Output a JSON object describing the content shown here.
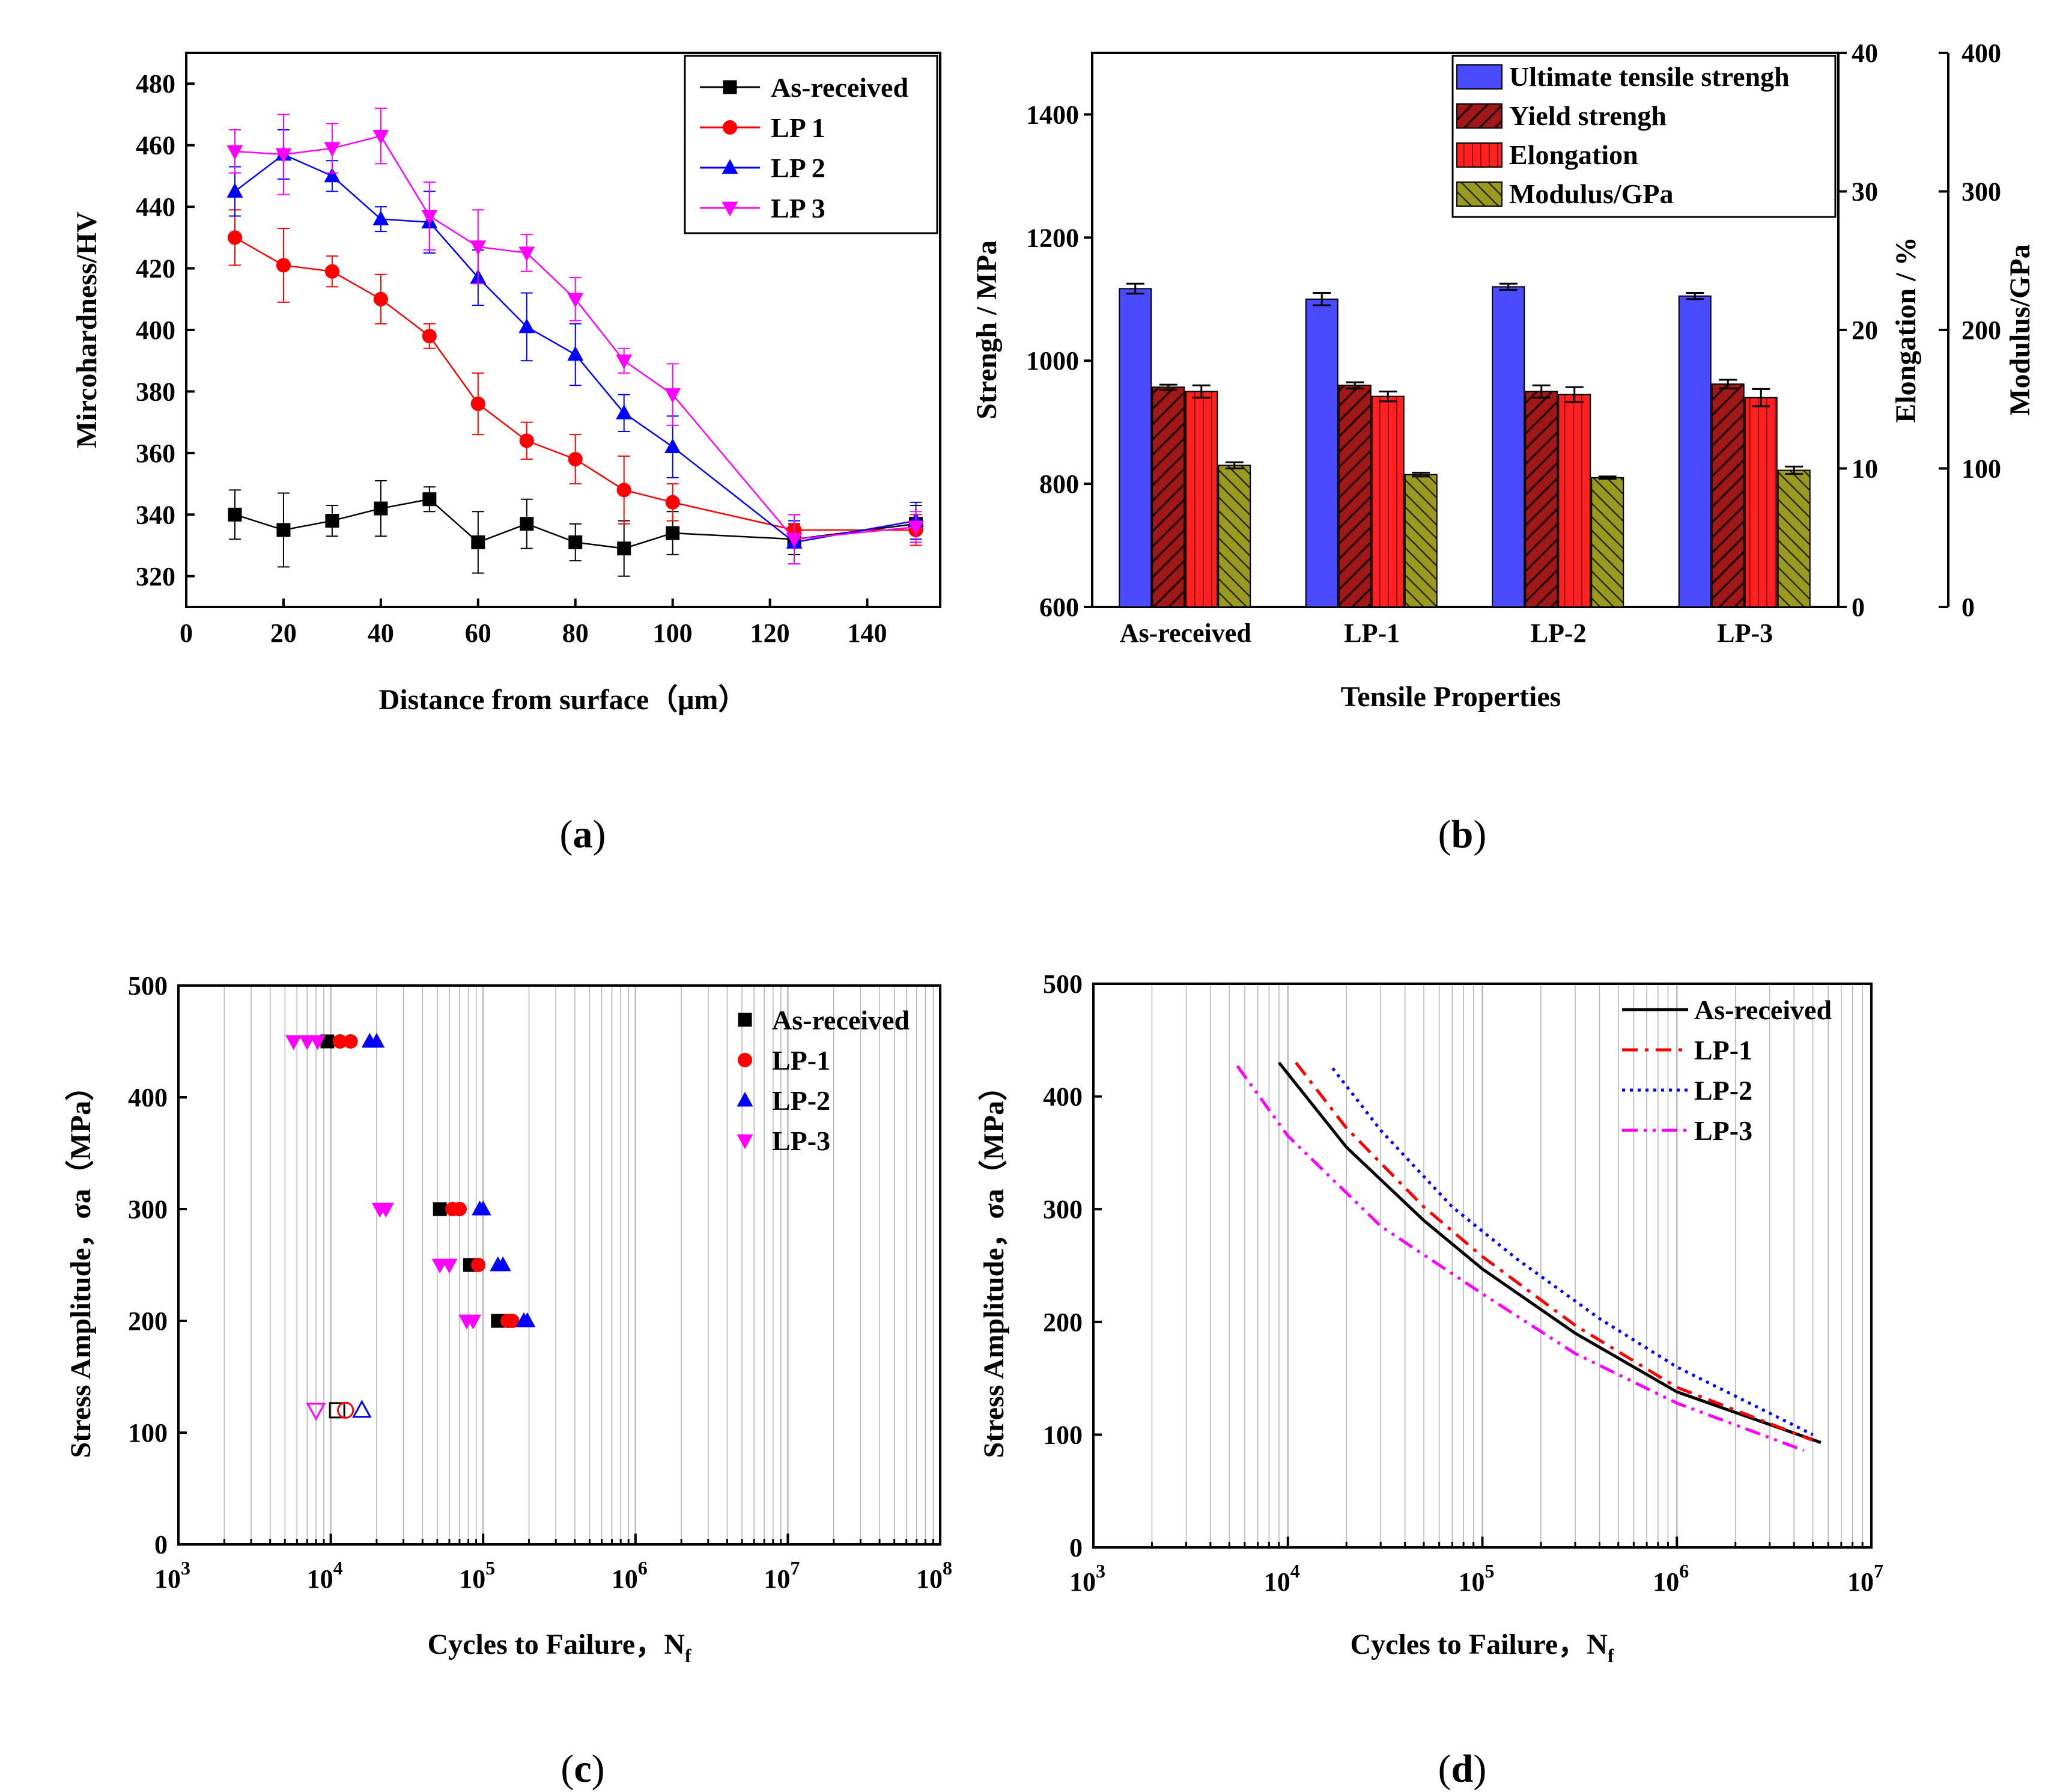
{
  "captions": {
    "a": "a",
    "b": "b",
    "c": "c",
    "d": "d"
  },
  "colors": {
    "as_received": "#000000",
    "lp1": "#ff0000",
    "lp2": "#0000ff",
    "lp3": "#ff00ff",
    "uts": "#4a4aff",
    "yield": "#a01010",
    "elong": "#ff2020",
    "modulus": "#8a8a10"
  },
  "chart_data": [
    {
      "id": "a",
      "type": "line",
      "xlabel": "Distance from surface（μm）",
      "ylabel": "Mircohardness/HV",
      "xlim": [
        0,
        155
      ],
      "ylim": [
        310,
        490
      ],
      "xticks": [
        0,
        20,
        40,
        60,
        80,
        100,
        120,
        140
      ],
      "yticks": [
        320,
        340,
        360,
        380,
        400,
        420,
        440,
        460,
        480
      ],
      "legend_position": "top-right",
      "x": [
        10,
        20,
        30,
        40,
        50,
        60,
        70,
        80,
        90,
        100,
        125,
        150
      ],
      "series": [
        {
          "name": "As-received",
          "marker": "square",
          "values": [
            340,
            335,
            338,
            342,
            345,
            331,
            337,
            331,
            329,
            334,
            332,
            337
          ],
          "errors": [
            8,
            12,
            5,
            9,
            4,
            10,
            8,
            6,
            9,
            7,
            5,
            6
          ]
        },
        {
          "name": "LP 1",
          "marker": "circle",
          "values": [
            430,
            421,
            419,
            410,
            398,
            376,
            364,
            358,
            348,
            344,
            335,
            335
          ],
          "errors": [
            9,
            12,
            5,
            8,
            4,
            10,
            6,
            8,
            11,
            6,
            5,
            5
          ]
        },
        {
          "name": "LP 2",
          "marker": "triangle-up",
          "values": [
            445,
            457,
            450,
            436,
            435,
            417,
            401,
            392,
            373,
            362,
            331,
            338
          ],
          "errors": [
            8,
            8,
            5,
            4,
            10,
            9,
            11,
            10,
            6,
            10,
            7,
            6
          ]
        },
        {
          "name": "LP 3",
          "marker": "triangle-down",
          "values": [
            458,
            457,
            459,
            463,
            437,
            427,
            425,
            410,
            390,
            379,
            332,
            336
          ],
          "errors": [
            7,
            13,
            8,
            9,
            11,
            12,
            6,
            7,
            4,
            10,
            8,
            5
          ]
        }
      ]
    },
    {
      "id": "b",
      "type": "bar",
      "xlabel": "Tensile  Properties",
      "ylabel": "Strengh / MPa",
      "ylabel_right1": "Elongation / %",
      "ylabel_right2": "Modulus/GPa",
      "ylim": [
        600,
        1500
      ],
      "y2lim": [
        0,
        40
      ],
      "y3lim": [
        0,
        400
      ],
      "yticks": [
        600,
        800,
        1000,
        1200,
        1400
      ],
      "y2ticks": [
        0,
        10,
        20,
        30,
        40
      ],
      "y3ticks": [
        0,
        100,
        200,
        300,
        400
      ],
      "categories": [
        "As-received",
        "LP-1",
        "LP-2",
        "LP-3"
      ],
      "legend_position": "top-right",
      "series": [
        {
          "name": "Ultimate tensile strengh",
          "axis": "left",
          "values": [
            1117,
            1100,
            1120,
            1105
          ],
          "errors": [
            8,
            10,
            5,
            5
          ]
        },
        {
          "name": "Yield strengh",
          "axis": "left",
          "values": [
            957,
            960,
            950,
            962
          ],
          "errors": [
            4,
            5,
            10,
            7
          ]
        },
        {
          "name": "Elongation",
          "axis": "left",
          "values": [
            950,
            942,
            945,
            940
          ],
          "errors": [
            10,
            8,
            12,
            14
          ]
        },
        {
          "name": "Modulus/GPa",
          "axis": "left",
          "values": [
            830,
            815,
            810,
            822
          ],
          "errors": [
            5,
            3,
            2,
            6
          ]
        }
      ]
    },
    {
      "id": "c",
      "type": "scatter",
      "xlabel": "Cycles to Failure，N",
      "xlabel_sub": "f",
      "ylabel": "Stress Amplitude，σa（MPa）",
      "xscale": "log",
      "xlim_exp": [
        3,
        8
      ],
      "ylim": [
        0,
        500
      ],
      "yticks": [
        0,
        100,
        200,
        300,
        400,
        500
      ],
      "xtick_base": "10",
      "xtick_exps": [
        "3",
        "4",
        "5",
        "6",
        "7",
        "8"
      ],
      "legend_position": "top-right",
      "series": [
        {
          "name": "As-received",
          "marker": "square",
          "points": [
            [
              9500,
              450
            ],
            [
              52000,
              300
            ],
            [
              82000,
              250
            ],
            [
              125000,
              200
            ]
          ],
          "runouts": [
            [
              11000,
              120
            ]
          ]
        },
        {
          "name": "LP-1",
          "marker": "circle",
          "points": [
            [
              11500,
              450
            ],
            [
              13500,
              450
            ],
            [
              63000,
              300
            ],
            [
              70000,
              300
            ],
            [
              93000,
              250
            ],
            [
              145000,
              200
            ],
            [
              155000,
              200
            ]
          ],
          "runouts": [
            [
              12500,
              120
            ]
          ]
        },
        {
          "name": "LP-2",
          "marker": "triangle-up",
          "points": [
            [
              18000,
              450
            ],
            [
              20000,
              450
            ],
            [
              95000,
              300
            ],
            [
              100000,
              300
            ],
            [
              125000,
              250
            ],
            [
              135000,
              250
            ],
            [
              185000,
              200
            ],
            [
              195000,
              200
            ]
          ],
          "runouts": [
            [
              16000,
              120
            ]
          ]
        },
        {
          "name": "LP-3",
          "marker": "triangle-down",
          "points": [
            [
              5700,
              450
            ],
            [
              7000,
              450
            ],
            [
              8200,
              450
            ],
            [
              21000,
              300
            ],
            [
              23000,
              300
            ],
            [
              52000,
              250
            ],
            [
              60000,
              250
            ],
            [
              78000,
              200
            ],
            [
              86000,
              200
            ]
          ],
          "runouts": [
            [
              8000,
              120
            ]
          ]
        }
      ]
    },
    {
      "id": "d",
      "type": "line",
      "xlabel": "Cycles to Failure，N",
      "xlabel_sub": "f",
      "ylabel": "Stress Amplitude，σa（MPa）",
      "xscale": "log",
      "xlim_exp": [
        3,
        7
      ],
      "ylim": [
        0,
        500
      ],
      "yticks": [
        0,
        100,
        200,
        300,
        400,
        500
      ],
      "xtick_base": "10",
      "xtick_exps": [
        "3",
        "4",
        "5",
        "6",
        "7"
      ],
      "legend_position": "top-right",
      "series": [
        {
          "name": "As-received",
          "style": "solid",
          "x": [
            9000,
            20000,
            50000,
            100000,
            300000,
            1000000,
            5500000
          ],
          "y": [
            430,
            355,
            290,
            247,
            190,
            138,
            93
          ]
        },
        {
          "name": "LP-1",
          "style": "dashdot",
          "x": [
            11000,
            20000,
            50000,
            100000,
            300000,
            1000000,
            5000000
          ],
          "y": [
            430,
            372,
            302,
            258,
            197,
            142,
            95
          ]
        },
        {
          "name": "LP-2",
          "style": "dotted",
          "x": [
            17000,
            30000,
            70000,
            150000,
            400000,
            1000000,
            5000000
          ],
          "y": [
            425,
            370,
            302,
            256,
            203,
            160,
            100
          ]
        },
        {
          "name": "LP-3",
          "style": "dashdotdot",
          "x": [
            5500,
            10000,
            30000,
            100000,
            300000,
            1000000,
            4500000
          ],
          "y": [
            427,
            365,
            285,
            225,
            172,
            128,
            86
          ]
        }
      ]
    }
  ]
}
